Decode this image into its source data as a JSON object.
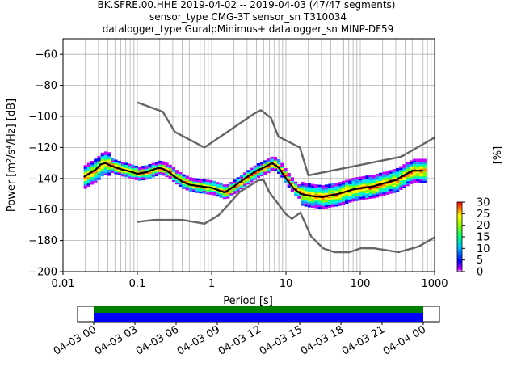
{
  "chart_data": [
    {
      "type": "heatmap",
      "title_lines": [
        "BK.SFRE.00.HHE   2019-04-02 -- 2019-04-03  (47/47 segments)",
        "sensor_type CMG-3T sensor_sn T310034",
        "datalogger_type GuralpMinimus+ datalogger_sn MINP-DF59"
      ],
      "xlabel": "Period [s]",
      "ylabel": "Power [m²/s⁴/Hz] [dB]",
      "x_scale": "log",
      "xlim": [
        0.01,
        1000
      ],
      "ylim": [
        -200,
        -50
      ],
      "x_ticks": [
        {
          "value": 0.01,
          "label": "0.01"
        },
        {
          "value": 0.1,
          "label": "0.1"
        },
        {
          "value": 1,
          "label": "1"
        },
        {
          "value": 10,
          "label": "10"
        },
        {
          "value": 100,
          "label": "100"
        },
        {
          "value": 1000,
          "label": "1000"
        }
      ],
      "y_ticks": [
        {
          "value": -60,
          "label": "−60"
        },
        {
          "value": -80,
          "label": "−80"
        },
        {
          "value": -100,
          "label": "−100"
        },
        {
          "value": -120,
          "label": "−120"
        },
        {
          "value": -140,
          "label": "−140"
        },
        {
          "value": -160,
          "label": "−160"
        },
        {
          "value": -180,
          "label": "−180"
        },
        {
          "value": -200,
          "label": "−200"
        }
      ],
      "grid": true,
      "colorbar": {
        "label": "[%]",
        "range": [
          0,
          30
        ],
        "ticks": [
          {
            "value": 0,
            "label": "0"
          },
          {
            "value": 5,
            "label": "5"
          },
          {
            "value": 10,
            "label": "10"
          },
          {
            "value": 15,
            "label": "15"
          },
          {
            "value": 20,
            "label": "20"
          },
          {
            "value": 25,
            "label": "25"
          },
          {
            "value": 30,
            "label": "30"
          }
        ]
      },
      "series": [
        {
          "role": "noise_model_high",
          "color": "#666666",
          "points": [
            [
              0.1,
              -91
            ],
            [
              0.22,
              -97
            ],
            [
              0.32,
              -110
            ],
            [
              0.8,
              -120
            ],
            [
              3.8,
              -98
            ],
            [
              4.6,
              -96
            ],
            [
              6.3,
              -101
            ],
            [
              7.9,
              -113
            ],
            [
              15.4,
              -120
            ],
            [
              20,
              -138
            ],
            [
              354.8,
              -126
            ],
            [
              10000,
              -86
            ]
          ]
        },
        {
          "role": "noise_model_low",
          "color": "#666666",
          "points": [
            [
              0.1,
              -168
            ],
            [
              0.17,
              -166.7
            ],
            [
              0.4,
              -166.7
            ],
            [
              0.8,
              -169.2
            ],
            [
              1.24,
              -163.7
            ],
            [
              2.4,
              -148.6
            ],
            [
              4.3,
              -141.1
            ],
            [
              5,
              -141.1
            ],
            [
              6,
              -149
            ],
            [
              10,
              -163
            ],
            [
              12,
              -166
            ],
            [
              15.6,
              -162
            ],
            [
              21.9,
              -177.5
            ],
            [
              31.6,
              -185
            ],
            [
              45,
              -187.5
            ],
            [
              70.8,
              -187.5
            ],
            [
              101,
              -185
            ],
            [
              154,
              -185
            ],
            [
              328,
              -187.5
            ],
            [
              600,
              -184
            ],
            [
              1000,
              -178
            ]
          ]
        },
        {
          "role": "mode",
          "color": "#000000",
          "points": [
            [
              0.019,
              -139
            ],
            [
              0.024,
              -136
            ],
            [
              0.028,
              -134
            ],
            [
              0.032,
              -131
            ],
            [
              0.037,
              -130
            ],
            [
              0.045,
              -132
            ],
            [
              0.06,
              -134
            ],
            [
              0.08,
              -135.5
            ],
            [
              0.1,
              -137
            ],
            [
              0.13,
              -136
            ],
            [
              0.17,
              -134
            ],
            [
              0.2,
              -133
            ],
            [
              0.25,
              -135
            ],
            [
              0.32,
              -139
            ],
            [
              0.4,
              -142
            ],
            [
              0.5,
              -144
            ],
            [
              0.7,
              -145
            ],
            [
              1,
              -146
            ],
            [
              1.5,
              -149
            ],
            [
              2,
              -145
            ],
            [
              3,
              -139
            ],
            [
              4,
              -135
            ],
            [
              5,
              -133
            ],
            [
              6.5,
              -130
            ],
            [
              8,
              -133
            ],
            [
              10,
              -140
            ],
            [
              13,
              -147
            ],
            [
              16,
              -150
            ],
            [
              20,
              -151
            ],
            [
              30,
              -152
            ],
            [
              50,
              -150
            ],
            [
              80,
              -147
            ],
            [
              150,
              -145
            ],
            [
              300,
              -141
            ],
            [
              500,
              -135
            ],
            [
              700,
              -135
            ]
          ]
        }
      ],
      "density": {
        "period_range": [
          0.019,
          700
        ],
        "spread_db": [
          -8,
          8
        ],
        "colormap": "pqlx"
      }
    },
    {
      "type": "timeline",
      "x_ticks": [
        "04-03 00",
        "04-03 03",
        "04-03 06",
        "04-03 09",
        "04-03 12",
        "04-03 15",
        "04-03 18",
        "04-03 21",
        "04-04 00"
      ],
      "bands": [
        {
          "color": "#008000"
        },
        {
          "color": "#0000ff"
        }
      ]
    }
  ]
}
